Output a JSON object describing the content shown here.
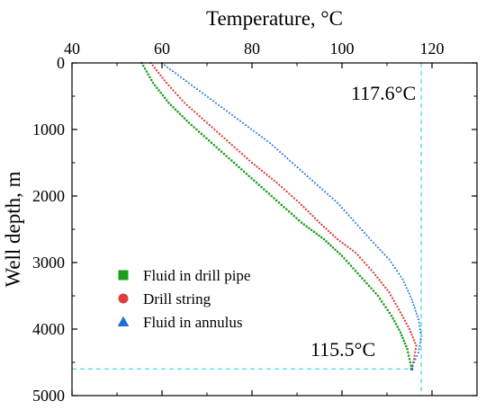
{
  "chart_data": {
    "type": "scatter",
    "xlabel": "Temperature, °C",
    "ylabel": "Well depth, m",
    "x_axis_position": "top",
    "y_axis_inverted": true,
    "xlim": [
      40,
      130
    ],
    "ylim": [
      0,
      5000
    ],
    "x_ticks": [
      "40",
      "60",
      "80",
      "100",
      "120"
    ],
    "y_ticks": [
      "0",
      "1000",
      "2000",
      "3000",
      "4000",
      "5000"
    ],
    "grid": false,
    "legend_position": "bottom-left",
    "series": [
      {
        "name": "Fluid in drill pipe",
        "marker": "square",
        "color": "#1a9e1a",
        "points": [
          [
            55.5,
            0
          ],
          [
            58,
            300
          ],
          [
            61.5,
            600
          ],
          [
            66,
            900
          ],
          [
            71,
            1200
          ],
          [
            76,
            1500
          ],
          [
            81,
            1800
          ],
          [
            86,
            2100
          ],
          [
            91,
            2400
          ],
          [
            96,
            2650
          ],
          [
            100,
            2900
          ],
          [
            104,
            3200
          ],
          [
            108,
            3500
          ],
          [
            111,
            3800
          ],
          [
            113,
            4050
          ],
          [
            114.5,
            4300
          ],
          [
            115.5,
            4600
          ]
        ]
      },
      {
        "name": "Drill string",
        "marker": "circle",
        "color": "#e03c3c",
        "points": [
          [
            57.5,
            0
          ],
          [
            61,
            300
          ],
          [
            65,
            600
          ],
          [
            70,
            900
          ],
          [
            75,
            1200
          ],
          [
            80,
            1500
          ],
          [
            85.5,
            1800
          ],
          [
            90.5,
            2100
          ],
          [
            95,
            2400
          ],
          [
            99,
            2650
          ],
          [
            103,
            2850
          ],
          [
            107,
            3150
          ],
          [
            110.5,
            3450
          ],
          [
            113,
            3750
          ],
          [
            115,
            4000
          ],
          [
            116.5,
            4250
          ],
          [
            116,
            4450
          ],
          [
            115.5,
            4600
          ]
        ]
      },
      {
        "name": "Fluid in annulus",
        "marker": "triangle",
        "color": "#1f6fd6",
        "points": [
          [
            60,
            0
          ],
          [
            66,
            300
          ],
          [
            72,
            600
          ],
          [
            78,
            900
          ],
          [
            84,
            1200
          ],
          [
            89,
            1500
          ],
          [
            94,
            1800
          ],
          [
            99,
            2100
          ],
          [
            103,
            2400
          ],
          [
            107,
            2700
          ],
          [
            110.5,
            2950
          ],
          [
            113.5,
            3250
          ],
          [
            115.5,
            3550
          ],
          [
            117,
            3850
          ],
          [
            117.6,
            4100
          ],
          [
            117,
            4350
          ],
          [
            116,
            4500
          ],
          [
            115.5,
            4600
          ]
        ]
      }
    ],
    "annotations": [
      {
        "text": "117.6°C",
        "x": 117.6,
        "guide": "vertical"
      },
      {
        "text": "115.5°C",
        "y": 4600,
        "guide": "horizontal"
      }
    ],
    "guide_color": "#40e0e0"
  }
}
